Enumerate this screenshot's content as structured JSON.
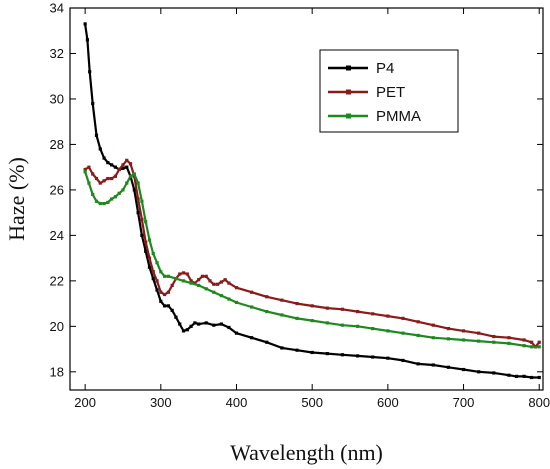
{
  "chart_data": {
    "type": "line",
    "xlabel": "Wavelength  (nm)",
    "ylabel": "Haze  (%)",
    "xlim": [
      180,
      805
    ],
    "ylim": [
      17.2,
      34
    ],
    "x_ticks": [
      200,
      300,
      400,
      500,
      600,
      700,
      800
    ],
    "y_ticks": [
      18,
      20,
      22,
      24,
      26,
      28,
      30,
      32,
      34
    ],
    "grid": false,
    "legend_position": "top-right",
    "series": [
      {
        "name": "P4",
        "color": "#000000",
        "points": [
          [
            200,
            33.3
          ],
          [
            203,
            32.6
          ],
          [
            206,
            31.2
          ],
          [
            210,
            29.8
          ],
          [
            215,
            28.4
          ],
          [
            220,
            27.8
          ],
          [
            225,
            27.4
          ],
          [
            230,
            27.2
          ],
          [
            235,
            27.1
          ],
          [
            240,
            27.0
          ],
          [
            245,
            26.9
          ],
          [
            250,
            26.95
          ],
          [
            255,
            27.0
          ],
          [
            260,
            26.6
          ],
          [
            265,
            26.0
          ],
          [
            270,
            25.0
          ],
          [
            275,
            24.0
          ],
          [
            280,
            23.3
          ],
          [
            285,
            22.6
          ],
          [
            290,
            22.1
          ],
          [
            295,
            21.6
          ],
          [
            300,
            21.1
          ],
          [
            305,
            20.9
          ],
          [
            310,
            20.9
          ],
          [
            315,
            20.7
          ],
          [
            320,
            20.4
          ],
          [
            325,
            20.1
          ],
          [
            330,
            19.8
          ],
          [
            335,
            19.85
          ],
          [
            340,
            20.0
          ],
          [
            345,
            20.15
          ],
          [
            350,
            20.1
          ],
          [
            360,
            20.15
          ],
          [
            370,
            20.05
          ],
          [
            380,
            20.1
          ],
          [
            390,
            19.95
          ],
          [
            400,
            19.7
          ],
          [
            420,
            19.5
          ],
          [
            440,
            19.3
          ],
          [
            460,
            19.05
          ],
          [
            480,
            18.95
          ],
          [
            500,
            18.85
          ],
          [
            520,
            18.8
          ],
          [
            540,
            18.75
          ],
          [
            560,
            18.7
          ],
          [
            580,
            18.65
          ],
          [
            600,
            18.6
          ],
          [
            620,
            18.5
          ],
          [
            640,
            18.35
          ],
          [
            660,
            18.3
          ],
          [
            680,
            18.2
          ],
          [
            700,
            18.1
          ],
          [
            720,
            18.0
          ],
          [
            740,
            17.95
          ],
          [
            760,
            17.85
          ],
          [
            770,
            17.8
          ],
          [
            780,
            17.8
          ],
          [
            790,
            17.75
          ],
          [
            800,
            17.75
          ]
        ]
      },
      {
        "name": "PET",
        "color": "#8b1a1a",
        "points": [
          [
            200,
            26.9
          ],
          [
            205,
            27.0
          ],
          [
            210,
            26.7
          ],
          [
            215,
            26.5
          ],
          [
            220,
            26.3
          ],
          [
            225,
            26.4
          ],
          [
            230,
            26.5
          ],
          [
            235,
            26.5
          ],
          [
            240,
            26.6
          ],
          [
            245,
            26.9
          ],
          [
            250,
            27.1
          ],
          [
            255,
            27.3
          ],
          [
            260,
            27.15
          ],
          [
            265,
            26.6
          ],
          [
            270,
            25.6
          ],
          [
            275,
            24.7
          ],
          [
            280,
            23.7
          ],
          [
            285,
            23.0
          ],
          [
            290,
            22.4
          ],
          [
            295,
            22.0
          ],
          [
            300,
            21.5
          ],
          [
            305,
            21.4
          ],
          [
            310,
            21.5
          ],
          [
            315,
            21.8
          ],
          [
            320,
            22.1
          ],
          [
            325,
            22.3
          ],
          [
            330,
            22.35
          ],
          [
            335,
            22.3
          ],
          [
            340,
            22.0
          ],
          [
            345,
            21.9
          ],
          [
            350,
            22.05
          ],
          [
            355,
            22.2
          ],
          [
            360,
            22.2
          ],
          [
            365,
            22.0
          ],
          [
            370,
            21.85
          ],
          [
            375,
            21.85
          ],
          [
            380,
            21.95
          ],
          [
            385,
            22.05
          ],
          [
            390,
            21.9
          ],
          [
            400,
            21.7
          ],
          [
            420,
            21.5
          ],
          [
            440,
            21.3
          ],
          [
            460,
            21.15
          ],
          [
            480,
            21.0
          ],
          [
            500,
            20.9
          ],
          [
            520,
            20.8
          ],
          [
            540,
            20.75
          ],
          [
            560,
            20.65
          ],
          [
            580,
            20.55
          ],
          [
            600,
            20.45
          ],
          [
            620,
            20.35
          ],
          [
            640,
            20.2
          ],
          [
            660,
            20.05
          ],
          [
            680,
            19.9
          ],
          [
            700,
            19.8
          ],
          [
            720,
            19.7
          ],
          [
            740,
            19.55
          ],
          [
            760,
            19.5
          ],
          [
            780,
            19.4
          ],
          [
            790,
            19.3
          ],
          [
            795,
            19.1
          ],
          [
            800,
            19.3
          ]
        ]
      },
      {
        "name": "PMMA",
        "color": "#1e8a1e",
        "points": [
          [
            200,
            26.8
          ],
          [
            205,
            26.3
          ],
          [
            210,
            25.8
          ],
          [
            215,
            25.5
          ],
          [
            220,
            25.4
          ],
          [
            225,
            25.4
          ],
          [
            230,
            25.45
          ],
          [
            235,
            25.6
          ],
          [
            240,
            25.7
          ],
          [
            245,
            25.85
          ],
          [
            250,
            26.0
          ],
          [
            255,
            26.3
          ],
          [
            260,
            26.6
          ],
          [
            265,
            26.7
          ],
          [
            270,
            26.3
          ],
          [
            275,
            25.5
          ],
          [
            280,
            24.6
          ],
          [
            285,
            23.8
          ],
          [
            290,
            23.2
          ],
          [
            295,
            22.8
          ],
          [
            300,
            22.4
          ],
          [
            305,
            22.2
          ],
          [
            310,
            22.2
          ],
          [
            320,
            22.1
          ],
          [
            330,
            22.0
          ],
          [
            340,
            21.9
          ],
          [
            350,
            21.8
          ],
          [
            360,
            21.65
          ],
          [
            370,
            21.5
          ],
          [
            380,
            21.35
          ],
          [
            390,
            21.2
          ],
          [
            400,
            21.05
          ],
          [
            420,
            20.85
          ],
          [
            440,
            20.65
          ],
          [
            460,
            20.5
          ],
          [
            480,
            20.35
          ],
          [
            500,
            20.25
          ],
          [
            520,
            20.15
          ],
          [
            540,
            20.05
          ],
          [
            560,
            20.0
          ],
          [
            580,
            19.9
          ],
          [
            600,
            19.8
          ],
          [
            620,
            19.7
          ],
          [
            640,
            19.6
          ],
          [
            660,
            19.5
          ],
          [
            680,
            19.45
          ],
          [
            700,
            19.4
          ],
          [
            720,
            19.35
          ],
          [
            740,
            19.3
          ],
          [
            760,
            19.25
          ],
          [
            780,
            19.15
          ],
          [
            790,
            19.1
          ],
          [
            800,
            19.1
          ]
        ]
      }
    ]
  }
}
